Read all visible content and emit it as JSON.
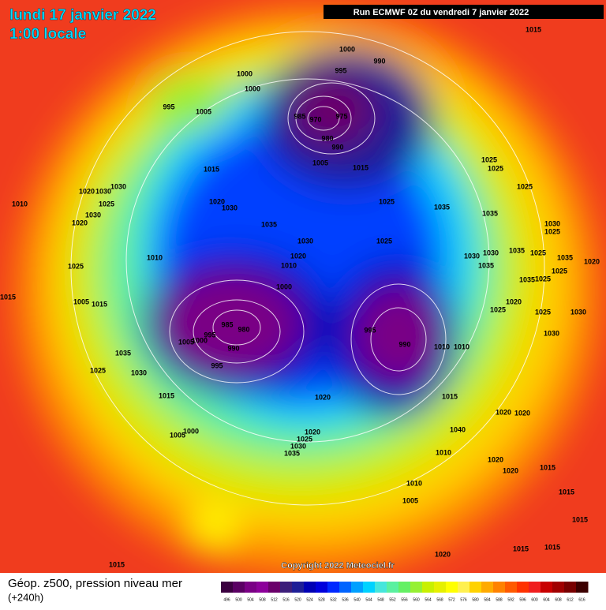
{
  "header": {
    "date": "lundi 17 janvier 2022",
    "time": "1:00 locale",
    "run": "Run ECMWF 0Z du vendredi 7 janvier 2022"
  },
  "copyright": "Copyright 2022 Meteociel.fr",
  "footer": {
    "title": "Géop. z500, pression niveau mer",
    "lead": "(+240h)"
  },
  "pressure_labels": [
    "1015",
    "1000",
    "990",
    "995",
    "1000",
    "1000",
    "995",
    "1005",
    "985",
    "970",
    "975",
    "980",
    "990",
    "1005",
    "1015",
    "1025",
    "1025",
    "1015",
    "1030",
    "1020",
    "1030",
    "1025",
    "1010",
    "1020",
    "1030",
    "1025",
    "1035",
    "1025",
    "1030",
    "1020",
    "1035",
    "1035",
    "1030",
    "1025",
    "1030",
    "1025",
    "1030",
    "1030",
    "1035",
    "1025",
    "1035",
    "1020",
    "1010",
    "1020",
    "1010",
    "1025",
    "1035",
    "1025",
    "1000",
    "1035",
    "1025",
    "1015",
    "1005",
    "1015",
    "1020",
    "1025",
    "1025",
    "1030",
    "985",
    "980",
    "995",
    "1005",
    "1000",
    "990",
    "995",
    "990",
    "1010",
    "1010",
    "1030",
    "1035",
    "1030",
    "1025",
    "995",
    "1015",
    "1020",
    "1015",
    "1020",
    "1020",
    "1040",
    "1000",
    "1005",
    "1020",
    "1025",
    "1030",
    "1035",
    "1010",
    "1020",
    "1020",
    "1015",
    "1010",
    "1005",
    "1015",
    "1015",
    "1015",
    "1015",
    "1020",
    "1015"
  ],
  "colorbar": {
    "ticks": [
      496,
      500,
      504,
      508,
      512,
      516,
      520,
      524,
      528,
      532,
      536,
      540,
      544,
      548,
      552,
      556,
      560,
      564,
      568,
      572,
      576,
      580,
      584,
      588,
      592,
      596,
      600,
      604,
      608,
      612,
      616
    ],
    "colors": [
      "#3b0040",
      "#5a0063",
      "#7a0085",
      "#8c009a",
      "#6a006a",
      "#3c1e7a",
      "#1e1e96",
      "#0000b4",
      "#0000dc",
      "#0028ff",
      "#0064ff",
      "#00a0ff",
      "#00d2ff",
      "#46e6dc",
      "#5af0a0",
      "#64f064",
      "#96f032",
      "#c8f000",
      "#e6f000",
      "#ffff00",
      "#fff050",
      "#ffd200",
      "#ffaa00",
      "#ff8200",
      "#ff5a00",
      "#ff3200",
      "#f01e1e",
      "#c80000",
      "#a00000",
      "#780000",
      "#3c0000"
    ]
  }
}
